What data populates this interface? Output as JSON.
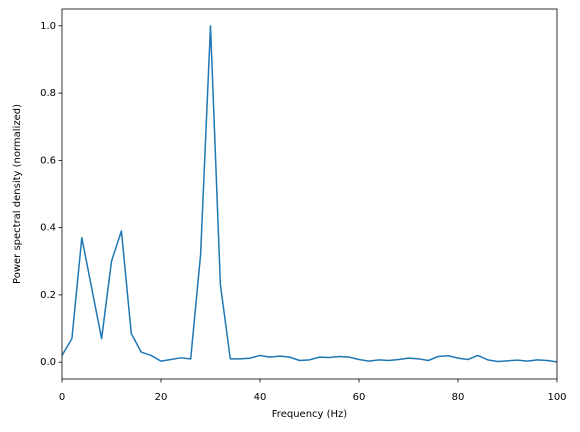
{
  "chart_data": {
    "type": "line",
    "xlabel": "Frequency (Hz)",
    "ylabel": "Power spectral density (normalized)",
    "x": [
      0,
      2,
      4,
      6,
      8,
      10,
      12,
      14,
      16,
      18,
      20,
      22,
      24,
      26,
      28,
      30,
      32,
      34,
      36,
      38,
      40,
      42,
      44,
      46,
      48,
      50,
      52,
      54,
      56,
      58,
      60,
      62,
      64,
      66,
      68,
      70,
      72,
      74,
      76,
      78,
      80,
      82,
      84,
      86,
      88,
      90,
      92,
      94,
      96,
      98,
      100
    ],
    "series": [
      {
        "color": "#1f77b4",
        "values": [
          0.02,
          0.07,
          0.37,
          0.22,
          0.07,
          0.3,
          0.39,
          0.085,
          0.03,
          0.02,
          0.003,
          0.008,
          0.013,
          0.01,
          0.32,
          1.0,
          0.23,
          0.01,
          0.01,
          0.012,
          0.02,
          0.015,
          0.018,
          0.015,
          0.005,
          0.007,
          0.015,
          0.014,
          0.017,
          0.015,
          0.008,
          0.003,
          0.007,
          0.005,
          0.008,
          0.012,
          0.01,
          0.005,
          0.017,
          0.019,
          0.012,
          0.008,
          0.02,
          0.007,
          0.002,
          0.004,
          0.006,
          0.003,
          0.007,
          0.005,
          0.001
        ]
      }
    ],
    "xlim": [
      0,
      100
    ],
    "xticks": [
      0,
      20,
      40,
      60,
      80,
      100
    ],
    "ylim": [
      -0.05,
      1.05
    ],
    "yticks": [
      {
        "value": 0,
        "label": "0.0"
      },
      0.2,
      0.4,
      0.6,
      0.8,
      {
        "value": 1,
        "label": "1.0"
      }
    ]
  }
}
